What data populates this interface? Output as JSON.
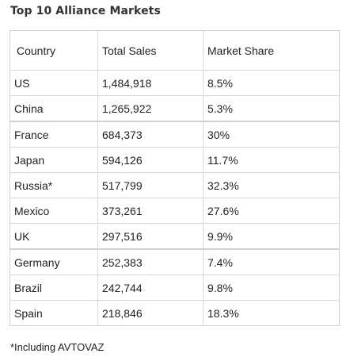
{
  "title": "Top 10 Alliance Markets",
  "table": {
    "headers": [
      "Country",
      "Total Sales",
      "Market Share"
    ],
    "rows": [
      {
        "country": "US",
        "sales": "1,484,918",
        "share": "8.5%"
      },
      {
        "country": "China",
        "sales": "1,265,922",
        "share": "5.3%"
      },
      {
        "country": "France",
        "sales": "684,373",
        "share": "30%"
      },
      {
        "country": "Japan",
        "sales": "594,126",
        "share": "11.7%"
      },
      {
        "country": "Russia*",
        "sales": "517,799",
        "share": "32.3%"
      },
      {
        "country": "Mexico",
        "sales": "373,261",
        "share": "27.6%"
      },
      {
        "country": "UK",
        "sales": "297,516",
        "share": "9.9%"
      },
      {
        "country": "Germany",
        "sales": "252,383",
        "share": "7.4%"
      },
      {
        "country": "Brazil",
        "sales": "242,744",
        "share": "9.8%"
      },
      {
        "country": "Spain",
        "sales": "218,846",
        "share": "18.3%"
      }
    ]
  },
  "footnote": "*Including AVTOVAZ"
}
